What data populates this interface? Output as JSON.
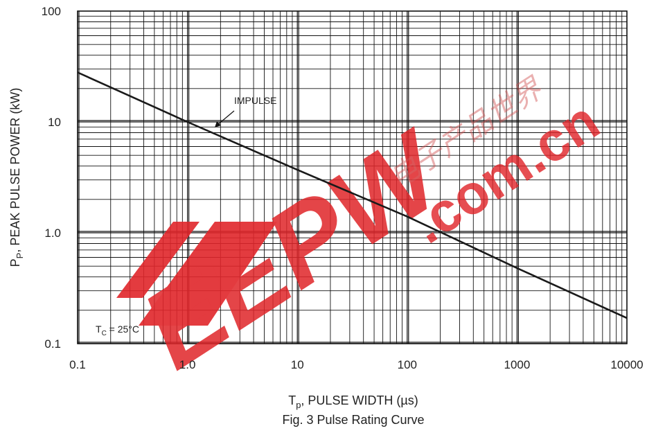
{
  "chart_data": {
    "type": "line",
    "xscale": "log",
    "yscale": "log",
    "xlim": [
      0.1,
      10000
    ],
    "ylim": [
      0.1,
      100
    ],
    "grid": true,
    "x_ticks": [
      "0.1",
      "1.0",
      "10",
      "100",
      "1000",
      "10000"
    ],
    "y_ticks": [
      "0.1",
      "1.0",
      "10",
      "100"
    ],
    "xlabel_main": "T",
    "xlabel_sub": "p",
    "xlabel_rest": ", PULSE WIDTH (µs)",
    "ylabel_main": "P",
    "ylabel_sub": "P",
    "ylabel_rest": ", PEAK PULSE POWER (kW)",
    "caption": "Fig. 3 Pulse Rating Curve",
    "series": [
      {
        "name": "IMPULSE",
        "x": [
          0.1,
          1.0,
          10,
          100,
          1000,
          10000
        ],
        "y": [
          28,
          10,
          3.7,
          1.4,
          0.48,
          0.17
        ]
      }
    ],
    "annotations": {
      "impulse_label": "IMPULSE",
      "tc_main": "T",
      "tc_sub": "C",
      "tc_rest": " = 25°C"
    }
  },
  "watermark": {
    "logo_text": "EEPW",
    "domain_text": ".com.cn",
    "chinese_text": "电子产品世界",
    "color": "#e0262b"
  }
}
